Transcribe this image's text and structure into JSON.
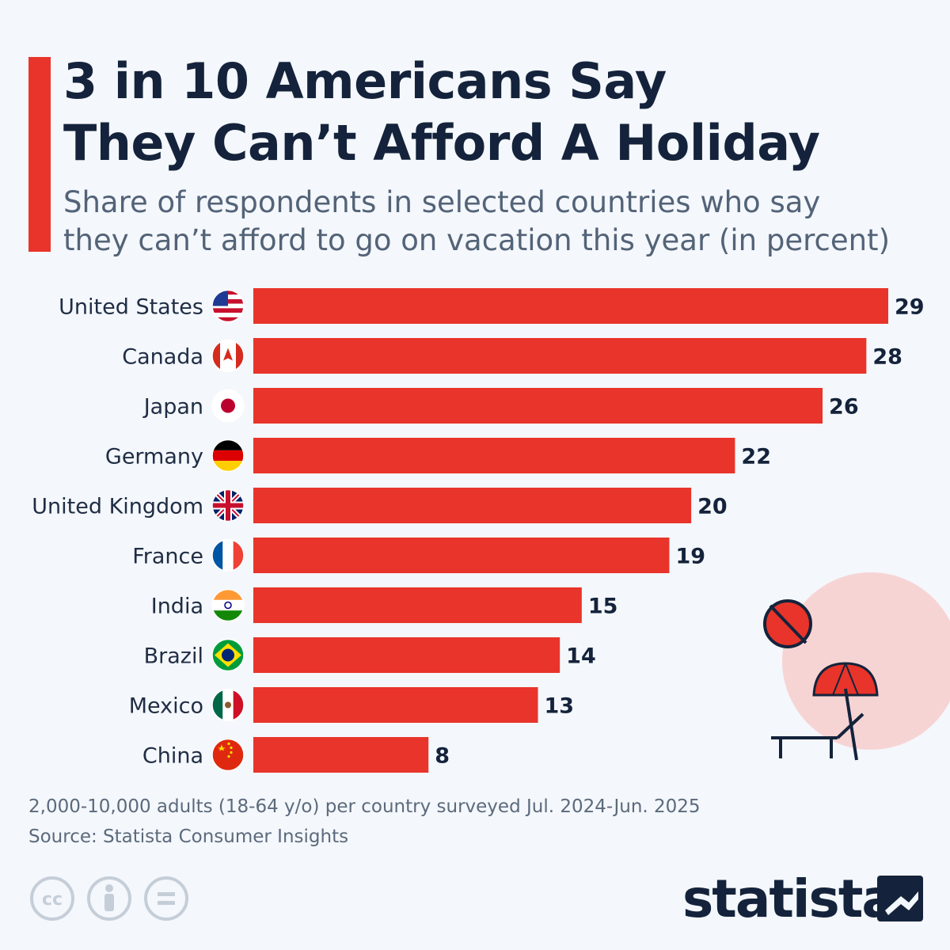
{
  "title": {
    "line1": "3 in 10 Americans Say",
    "line2": "They Can’t Afford A Holiday"
  },
  "subtitle": {
    "line1": "Share of respondents in selected countries who say",
    "line2": "they can’t afford to go on vacation this year (in percent)"
  },
  "chart_data": {
    "type": "bar",
    "orientation": "horizontal",
    "title": "3 in 10 Americans Say They Can’t Afford A Holiday",
    "subtitle": "Share of respondents in selected countries who say they can’t afford to go on vacation this year (in percent)",
    "categories": [
      "United States",
      "Canada",
      "Japan",
      "Germany",
      "United Kingdom",
      "France",
      "India",
      "Brazil",
      "Mexico",
      "China"
    ],
    "values": [
      29,
      28,
      26,
      22,
      20,
      19,
      15,
      14,
      13,
      8
    ],
    "xlim": [
      0,
      29
    ],
    "grid": false,
    "bar_color": "#e8342a"
  },
  "flags": [
    "flag-us-icon",
    "flag-canada-icon",
    "flag-japan-icon",
    "flag-germany-icon",
    "flag-uk-icon",
    "flag-france-icon",
    "flag-india-icon",
    "flag-brazil-icon",
    "flag-mexico-icon",
    "flag-china-icon"
  ],
  "footnote": {
    "survey": "2,000-10,000 adults (18-64 y/o) per country surveyed Jul. 2024-Jun. 2025",
    "source": "Source: Statista Consumer Insights"
  },
  "license_icons": [
    "creative-commons-icon",
    "attribution-icon",
    "no-derivatives-icon"
  ],
  "logo": {
    "text": "statista"
  },
  "colors": {
    "accent": "#e8342a",
    "title": "#14233b",
    "subtitle": "#536378",
    "background": "#f4f7fb",
    "illustration_circle": "#f7d4d4"
  }
}
